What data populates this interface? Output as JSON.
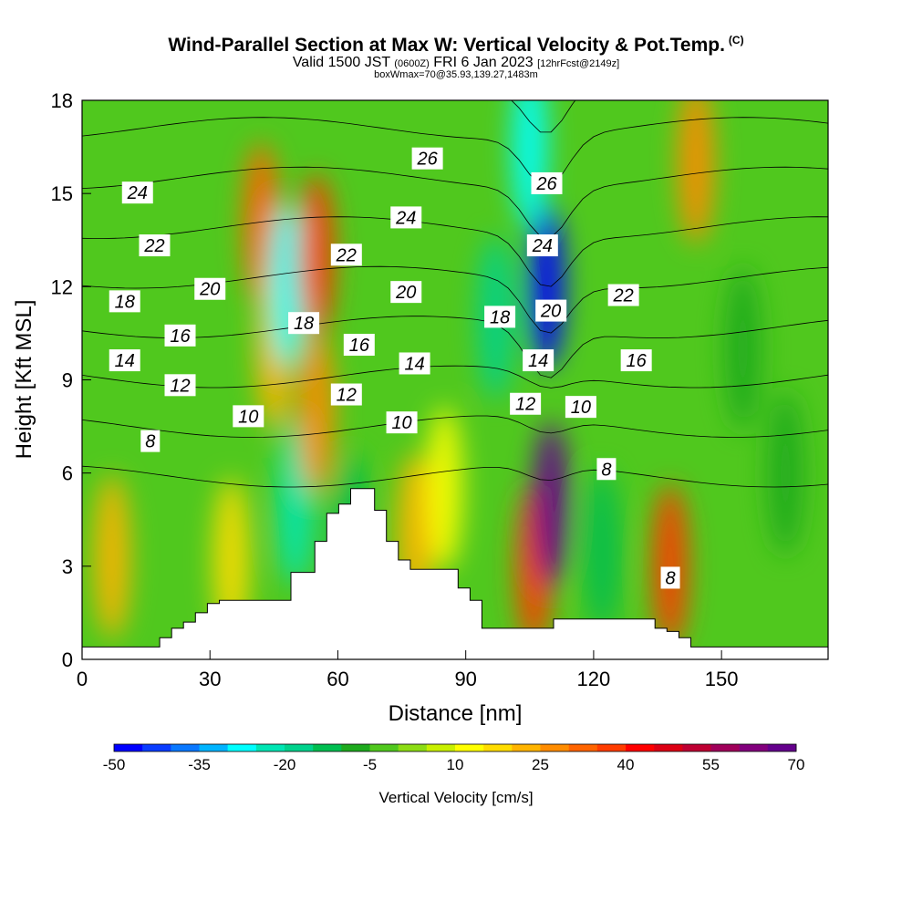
{
  "header": {
    "title": "Wind-Parallel Section at Max W: Vertical Velocity & Pot.Temp.",
    "copyright": "(C)",
    "valid_pre": "Valid 1500 JST",
    "valid_z": "(0600Z)",
    "valid_date": "FRI 6 Jan 2023",
    "forecast": "[12hrFcst@2149z]",
    "box": "boxWmax=70@35.93,139.27,1483m"
  },
  "chart_data": {
    "type": "heatmap",
    "xlabel": "Distance [nm]",
    "ylabel": "Height [Kft MSL]",
    "xlim": [
      0,
      175
    ],
    "ylim": [
      0,
      18
    ],
    "x_ticks": [
      "0",
      "30",
      "60",
      "90",
      "120",
      "150"
    ],
    "x_tick_values": [
      0,
      30,
      60,
      90,
      120,
      150
    ],
    "y_ticks": [
      "0",
      "3",
      "6",
      "9",
      "12",
      "15",
      "18"
    ],
    "y_tick_values": [
      0,
      3,
      6,
      9,
      12,
      15,
      18
    ],
    "colorbar": {
      "label": "Vertical Velocity [cm/s]",
      "tick_labels": [
        "-50",
        "-35",
        "-20",
        "-5",
        "10",
        "25",
        "40",
        "55",
        "70"
      ],
      "colors": [
        "#0000ff",
        "#0a3cff",
        "#0a78ff",
        "#00b4ff",
        "#00ffff",
        "#00e6b4",
        "#00d28c",
        "#00be50",
        "#1eaa1e",
        "#50c81e",
        "#8cdc14",
        "#c8f000",
        "#ffff00",
        "#ffdc00",
        "#ffb400",
        "#ff8c00",
        "#ff6400",
        "#ff3c00",
        "#ff0000",
        "#dc0014",
        "#be0032",
        "#a0005a",
        "#82007d",
        "#64008c"
      ]
    },
    "vertical_velocity_features": [
      {
        "x": 7,
        "y": 3.3,
        "w": 20
      },
      {
        "x": 35,
        "y": 3.2,
        "w": 15
      },
      {
        "x": 42,
        "y": 14,
        "w": 30
      },
      {
        "x": 45,
        "y": 10,
        "w": 22
      },
      {
        "x": 48,
        "y": 12,
        "w": -28
      },
      {
        "x": 50,
        "y": 5,
        "w": -25
      },
      {
        "x": 55,
        "y": 13,
        "w": 35
      },
      {
        "x": 55,
        "y": 8,
        "w": 25
      },
      {
        "x": 63,
        "y": 4,
        "w": -15
      },
      {
        "x": 78,
        "y": 4,
        "w": 20
      },
      {
        "x": 85,
        "y": 5.5,
        "w": 12
      },
      {
        "x": 97,
        "y": 11,
        "w": -20
      },
      {
        "x": 105,
        "y": 16.5,
        "w": -30
      },
      {
        "x": 109,
        "y": 12,
        "w": -50
      },
      {
        "x": 106,
        "y": 3,
        "w": 35
      },
      {
        "x": 110,
        "y": 5,
        "w": 70
      },
      {
        "x": 122,
        "y": 3.5,
        "w": -15
      },
      {
        "x": 138,
        "y": 3,
        "w": 35
      },
      {
        "x": 144,
        "y": 16,
        "w": 25
      },
      {
        "x": 155,
        "y": 10,
        "w": -10
      },
      {
        "x": 165,
        "y": 6,
        "w": -10
      }
    ],
    "potential_temperature": {
      "levels": [
        8,
        10,
        12,
        14,
        16,
        18,
        20,
        22,
        24,
        26
      ],
      "labels": [
        {
          "text": "24",
          "x": 13,
          "y": 15.0
        },
        {
          "text": "22",
          "x": 17,
          "y": 13.3
        },
        {
          "text": "20",
          "x": 30,
          "y": 11.9
        },
        {
          "text": "18",
          "x": 10,
          "y": 11.5
        },
        {
          "text": "16",
          "x": 23,
          "y": 10.4
        },
        {
          "text": "14",
          "x": 10,
          "y": 9.6
        },
        {
          "text": "12",
          "x": 23,
          "y": 8.8
        },
        {
          "text": "10",
          "x": 39,
          "y": 7.8
        },
        {
          "text": "8",
          "x": 16,
          "y": 7.0
        },
        {
          "text": "26",
          "x": 81,
          "y": 16.1
        },
        {
          "text": "24",
          "x": 76,
          "y": 14.2
        },
        {
          "text": "22",
          "x": 62,
          "y": 13.0
        },
        {
          "text": "20",
          "x": 76,
          "y": 11.8
        },
        {
          "text": "18",
          "x": 52,
          "y": 10.8
        },
        {
          "text": "16",
          "x": 65,
          "y": 10.1
        },
        {
          "text": "14",
          "x": 78,
          "y": 9.5
        },
        {
          "text": "12",
          "x": 62,
          "y": 8.5
        },
        {
          "text": "10",
          "x": 75,
          "y": 7.6
        },
        {
          "text": "26",
          "x": 109,
          "y": 15.3
        },
        {
          "text": "24",
          "x": 108,
          "y": 13.3
        },
        {
          "text": "20",
          "x": 110,
          "y": 11.2
        },
        {
          "text": "18",
          "x": 98,
          "y": 11.0
        },
        {
          "text": "14",
          "x": 107,
          "y": 9.6
        },
        {
          "text": "12",
          "x": 104,
          "y": 8.2
        },
        {
          "text": "10",
          "x": 117,
          "y": 8.1
        },
        {
          "text": "22",
          "x": 127,
          "y": 11.7
        },
        {
          "text": "16",
          "x": 130,
          "y": 9.6
        },
        {
          "text": "8",
          "x": 123,
          "y": 6.1
        },
        {
          "text": "8",
          "x": 138,
          "y": 2.6
        }
      ]
    },
    "terrain_heights_kft": [
      0.4,
      0.4,
      0.4,
      0.4,
      0.4,
      0.4,
      0.4,
      0.4,
      0.4,
      0.4,
      0.4,
      0.4,
      0.4,
      0.7,
      0.7,
      1.0,
      1.0,
      1.2,
      1.2,
      1.5,
      1.5,
      1.8,
      1.8,
      1.9,
      1.9,
      1.9,
      1.9,
      1.9,
      1.9,
      1.9,
      1.9,
      1.9,
      1.9,
      1.9,
      1.9,
      2.8,
      2.8,
      2.8,
      2.8,
      3.8,
      3.8,
      4.7,
      4.7,
      5.0,
      5.0,
      5.5,
      5.5,
      5.5,
      5.5,
      4.8,
      4.8,
      3.8,
      3.8,
      3.2,
      3.2,
      2.9,
      2.9,
      2.9,
      2.9,
      2.9,
      2.9,
      2.9,
      2.9,
      2.3,
      2.3,
      1.9,
      1.9,
      1.0,
      1.0,
      1.0,
      1.0,
      1.0,
      1.0,
      1.0,
      1.0,
      1.0,
      1.0,
      1.0,
      1.0,
      1.3,
      1.3,
      1.3,
      1.3,
      1.3,
      1.3,
      1.3,
      1.3,
      1.3,
      1.3,
      1.3,
      1.3,
      1.3,
      1.3,
      1.3,
      1.3,
      1.3,
      1.0,
      1.0,
      0.9,
      0.9,
      0.7,
      0.7,
      0.4,
      0.4,
      0.4,
      0.4,
      0.4,
      0.4,
      0.4,
      0.4,
      0.4,
      0.4,
      0.4,
      0.4,
      0.4,
      0.4,
      0.4,
      0.4,
      0.4,
      0.4,
      0.4,
      0.4,
      0.4,
      0.4,
      0.4
    ]
  }
}
